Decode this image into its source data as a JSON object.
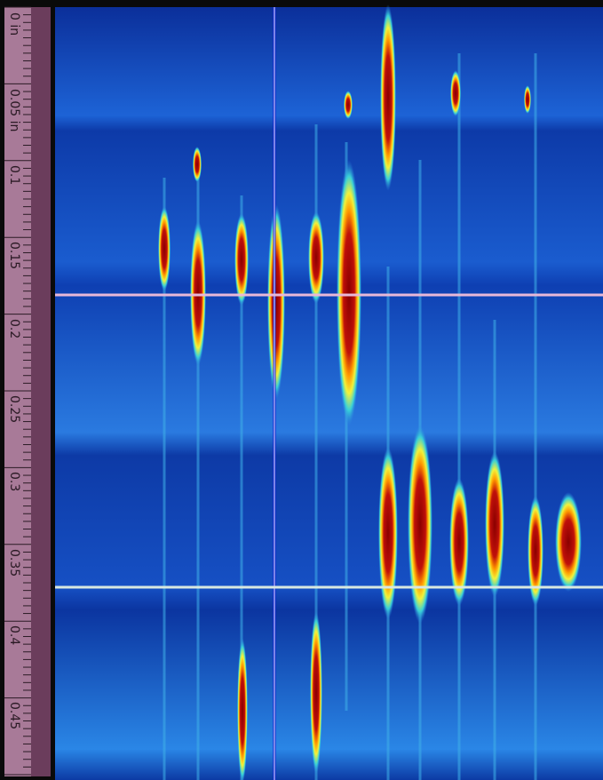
{
  "ruler": {
    "labels": [
      "0 in",
      "0.05 in",
      "0.1",
      "0.15",
      "0.2",
      "0.25",
      "0.3",
      "0.35",
      "0.4",
      "0.45"
    ]
  }
}
